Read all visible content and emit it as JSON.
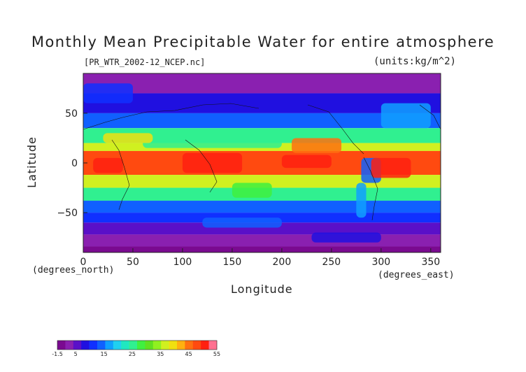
{
  "title": "Monthly Mean Precipitable Water for entire atmosphere",
  "file_label": "[PR_WTR_2002-12_NCEP.nc]",
  "units_label": "(units:kg/m^2)",
  "chart_data": {
    "type": "heatmap",
    "xlabel": "Longitude",
    "ylabel": "Latitude",
    "x_unit_label": "(degrees_east)",
    "y_unit_label": "(degrees_north)",
    "xlim": [
      0,
      360
    ],
    "ylim": [
      -90,
      90
    ],
    "x_ticks": [
      "0",
      "50",
      "100",
      "150",
      "200",
      "250",
      "300",
      "350"
    ],
    "x_tick_values": [
      0,
      50,
      100,
      150,
      200,
      250,
      300,
      350
    ],
    "y_ticks": [
      "50",
      "0",
      "−50"
    ],
    "y_tick_values": [
      50,
      0,
      -50
    ],
    "colorbar": {
      "min": -1.5,
      "max": 55,
      "tick_labels": [
        "-1.5",
        "5",
        "15",
        "25",
        "35",
        "45",
        "55"
      ],
      "tick_values": [
        -1.5,
        5,
        15,
        25,
        35,
        45,
        55
      ],
      "colors": [
        "#7a0a90",
        "#8a20b0",
        "#5a10c8",
        "#2010e0",
        "#1030ff",
        "#1060ff",
        "#10a0ff",
        "#20d0f0",
        "#20e8c0",
        "#30f090",
        "#40f040",
        "#60e020",
        "#90f020",
        "#d0f020",
        "#f0e010",
        "#ffb010",
        "#ff7010",
        "#ff4a10",
        "#ff2010",
        "#ff7090"
      ]
    },
    "latitude_bands": [
      {
        "lat_min": 70,
        "lat_max": 90,
        "value": 3
      },
      {
        "lat_min": 50,
        "lat_max": 70,
        "value": 7
      },
      {
        "lat_min": 35,
        "lat_max": 50,
        "value": 14
      },
      {
        "lat_min": 20,
        "lat_max": 35,
        "value": 25
      },
      {
        "lat_min": 12,
        "lat_max": 20,
        "value": 36
      },
      {
        "lat_min": -12,
        "lat_max": 12,
        "value": 48
      },
      {
        "lat_min": -25,
        "lat_max": -12,
        "value": 36
      },
      {
        "lat_min": -38,
        "lat_max": -25,
        "value": 25
      },
      {
        "lat_min": -50,
        "lat_max": -38,
        "value": 15
      },
      {
        "lat_min": -60,
        "lat_max": -50,
        "value": 10
      },
      {
        "lat_min": -72,
        "lat_max": -60,
        "value": 6
      },
      {
        "lat_min": -84,
        "lat_max": -72,
        "value": 3
      },
      {
        "lat_min": -90,
        "lat_max": -84,
        "value": 0
      }
    ]
  }
}
